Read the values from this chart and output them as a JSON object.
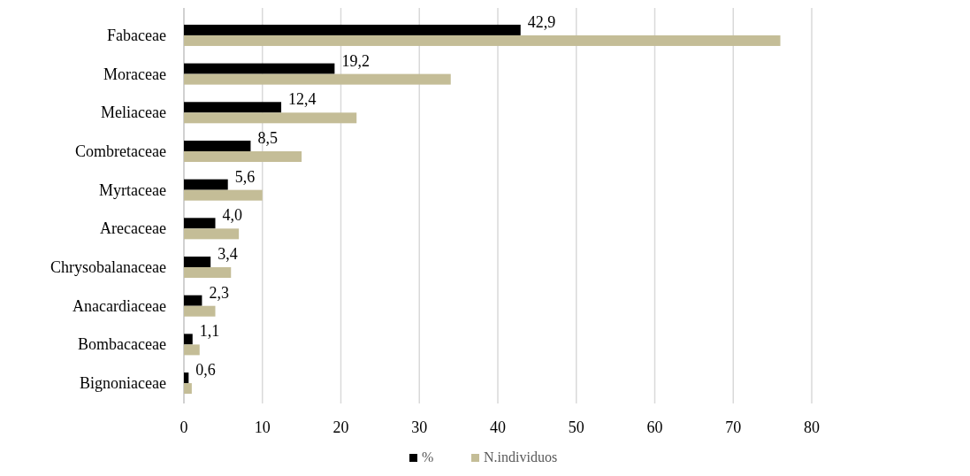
{
  "chart_data": {
    "type": "bar",
    "orientation": "horizontal",
    "categories": [
      "Fabaceae",
      "Moraceae",
      "Meliaceae",
      "Combretaceae",
      "Myrtaceae",
      "Arecaceae",
      "Chrysobalanaceae",
      "Anacardiaceae",
      "Bombacaceae",
      "Bignoniaceae"
    ],
    "series": [
      {
        "name": "%",
        "color": "#000000",
        "values": [
          42.9,
          19.2,
          12.4,
          8.5,
          5.6,
          4.0,
          3.4,
          2.3,
          1.1,
          0.6
        ],
        "value_labels": [
          "42,9",
          "19,2",
          "12,4",
          "8,5",
          "5,6",
          "4,0",
          "3,4",
          "2,3",
          "1,1",
          "0,6"
        ]
      },
      {
        "name": "N.individuos",
        "color": "#c4bd97",
        "values": [
          76,
          34,
          22,
          15,
          10,
          7,
          6,
          4,
          2,
          1
        ]
      }
    ],
    "xlim": [
      0,
      80
    ],
    "xticks": [
      0,
      10,
      20,
      30,
      40,
      50,
      60,
      70,
      80
    ],
    "grid": "x",
    "legend": "bottom"
  }
}
